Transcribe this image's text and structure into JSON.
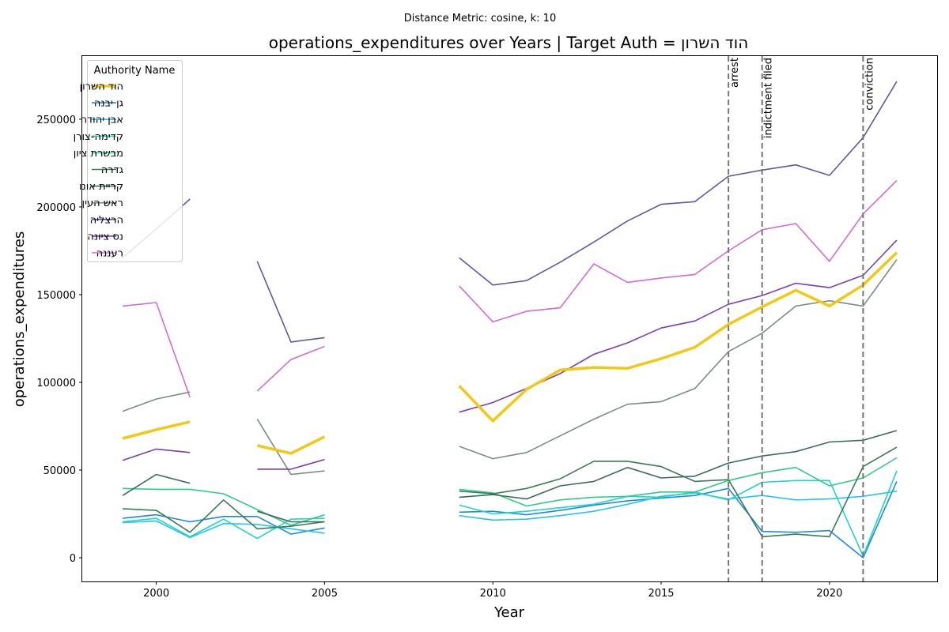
{
  "chart_data": {
    "type": "line",
    "suptitle": "Distance Metric: cosine, k: 10",
    "title": "operations_expenditures over Years | Target Auth = הוד השרון",
    "xlabel": "Year",
    "ylabel": "operations_expenditures",
    "xlim": [
      1997.8,
      2023.2
    ],
    "ylim": [
      -13500,
      286000
    ],
    "xticks": [
      2000,
      2005,
      2010,
      2015,
      2020
    ],
    "yticks": [
      0,
      50000,
      100000,
      150000,
      200000,
      250000
    ],
    "grid": false,
    "legend": {
      "title": "Authority Name",
      "placement": "top-left"
    },
    "x": [
      1999,
      2000,
      2001,
      2002,
      2003,
      2004,
      2005,
      2006,
      2007,
      2008,
      2009,
      2010,
      2011,
      2012,
      2013,
      2014,
      2015,
      2016,
      2017,
      2018,
      2019,
      2020,
      2021,
      2022
    ],
    "events": [
      {
        "label": "arrest",
        "x": 2017
      },
      {
        "label": "indictment filed",
        "x": 2018
      },
      {
        "label": "conviction",
        "x": 2021
      }
    ],
    "series": [
      {
        "name": "הוד השרון",
        "color": "#f2c811",
        "target": true,
        "values": [
          68000,
          73000,
          77500,
          null,
          64000,
          59500,
          69000,
          null,
          null,
          null,
          98000,
          78000,
          96000,
          107000,
          108500,
          108000,
          113500,
          120000,
          133000,
          143000,
          152500,
          143500,
          155500,
          174000
        ]
      },
      {
        "name": "גן יבנה",
        "color": "#1f88e0",
        "values": [
          22500,
          24500,
          20500,
          23500,
          23500,
          13500,
          17000,
          null,
          null,
          null,
          26000,
          26500,
          24500,
          27000,
          30000,
          32500,
          34000,
          35500,
          39500,
          15000,
          14500,
          15500,
          0,
          43500
        ]
      },
      {
        "name": "אבן יהודה",
        "color": "#28c4ec",
        "values": [
          20000,
          21000,
          11500,
          19500,
          19000,
          16500,
          14000,
          null,
          null,
          null,
          24000,
          21500,
          22000,
          24000,
          26500,
          30500,
          35000,
          37000,
          33500,
          35500,
          33000,
          33500,
          35000,
          38000
        ]
      },
      {
        "name": "קדימה-צורן",
        "color": "#1ed6c2",
        "values": [
          20500,
          22500,
          12000,
          22000,
          11000,
          22000,
          22500,
          null,
          null,
          null,
          30000,
          25000,
          26500,
          28500,
          30500,
          35000,
          34500,
          37500,
          33000,
          43000,
          44000,
          44000,
          1000,
          49500
        ]
      },
      {
        "name": "מבשרת ציון",
        "color": "#2ecc8a",
        "values": [
          39500,
          39000,
          39000,
          36500,
          27500,
          18500,
          24500,
          null,
          null,
          null,
          39000,
          37000,
          29500,
          33000,
          34500,
          35000,
          37500,
          37500,
          44000,
          48500,
          51500,
          41000,
          45500,
          57000
        ]
      },
      {
        "name": "גדרה",
        "color": "#3a7b58",
        "values": [
          28000,
          27000,
          14500,
          33000,
          16500,
          18000,
          20500,
          null,
          null,
          null,
          38000,
          36500,
          39500,
          45000,
          55000,
          55000,
          52000,
          43500,
          44500,
          12000,
          13500,
          12000,
          52000,
          63000
        ]
      },
      {
        "name": "קריית אונו",
        "color": "#3d6b5e",
        "values": [
          35500,
          47500,
          42500,
          null,
          26500,
          20500,
          20500,
          null,
          null,
          null,
          34500,
          36000,
          33500,
          41000,
          43500,
          51500,
          45500,
          46500,
          54000,
          58000,
          60500,
          66000,
          67000,
          72500
        ]
      },
      {
        "name": "ראש העין",
        "color": "#7f8c86",
        "values": [
          83500,
          90500,
          94500,
          null,
          79000,
          47500,
          49500,
          null,
          null,
          null,
          63500,
          56500,
          60000,
          69500,
          79000,
          87500,
          89000,
          96500,
          117500,
          128000,
          143500,
          146500,
          143500,
          170000
        ]
      },
      {
        "name": "הרצליה",
        "color": "#5f5a9c",
        "values": [
          171000,
          187500,
          204500,
          null,
          169000,
          123000,
          125500,
          null,
          null,
          null,
          171000,
          155500,
          158000,
          168500,
          180000,
          192000,
          201500,
          203000,
          217500,
          221000,
          224000,
          218000,
          239500,
          271500
        ]
      },
      {
        "name": "נס ציונה",
        "color": "#7b40ad",
        "values": [
          55500,
          62000,
          60000,
          null,
          50500,
          50500,
          56000,
          null,
          null,
          null,
          83000,
          88500,
          96500,
          105000,
          116000,
          122500,
          131000,
          135000,
          144500,
          149500,
          156500,
          154000,
          161000,
          181000
        ]
      },
      {
        "name": "רעננה",
        "color": "#cf6dd0",
        "values": [
          143500,
          145500,
          91500,
          null,
          95000,
          113000,
          120500,
          null,
          null,
          null,
          155000,
          134500,
          140500,
          142500,
          167500,
          157000,
          159500,
          161500,
          175000,
          187000,
          190500,
          169000,
          196000,
          215000
        ]
      }
    ]
  }
}
